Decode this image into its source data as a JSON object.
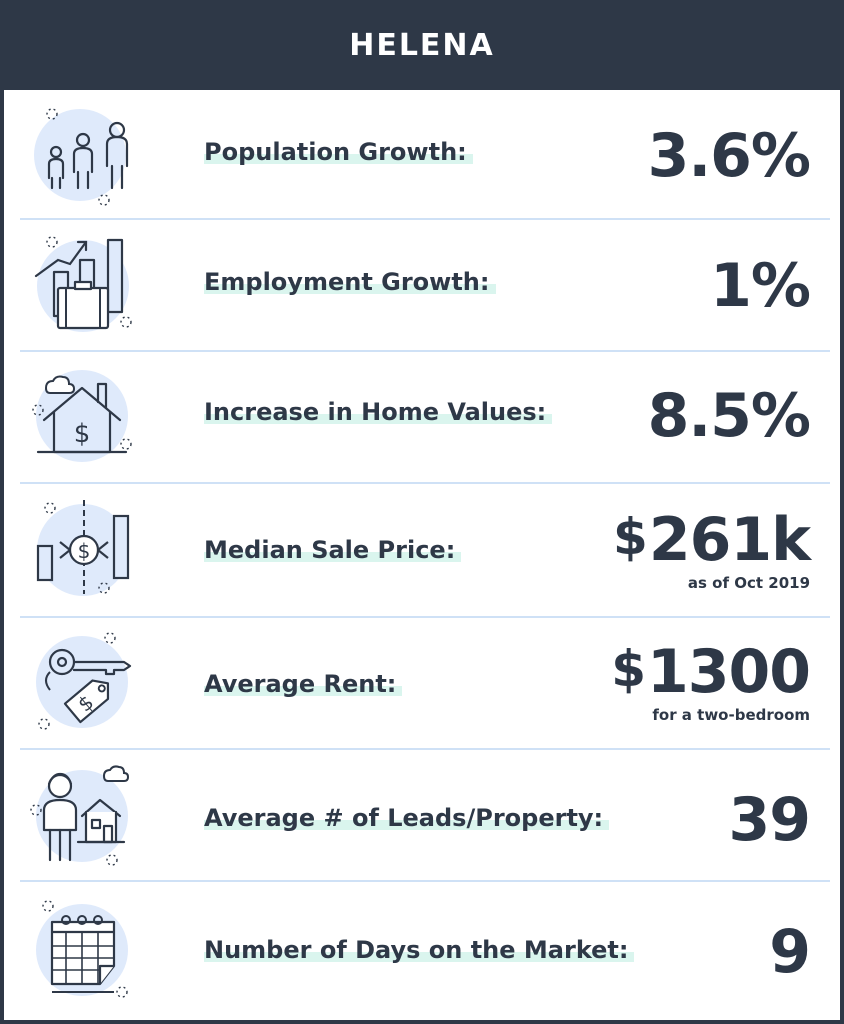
{
  "header": {
    "title": "HELENA"
  },
  "colors": {
    "dark": "#2e3847",
    "accent_light_blue": "#dfeafb",
    "divider": "#cfe1f6",
    "highlight": "#daf5ee"
  },
  "rows": [
    {
      "icon": "family-icon",
      "label": "Population Growth:",
      "value": "3.6%"
    },
    {
      "icon": "briefcase-chart-icon",
      "label": "Employment Growth:",
      "value": "1%"
    },
    {
      "icon": "house-dollar-icon",
      "label": "Increase in Home Values:",
      "value": "8.5%"
    },
    {
      "icon": "price-chart-icon",
      "label": "Median Sale Price:",
      "value_currency": "$",
      "value_number": "261k",
      "sub": "as  of Oct 2019"
    },
    {
      "icon": "key-tag-icon",
      "label": "Average Rent:",
      "value_currency": "$",
      "value_number": "1300",
      "sub": "for a two-bedroom"
    },
    {
      "icon": "person-house-icon",
      "label": "Average # of Leads/Property:",
      "value": "39"
    },
    {
      "icon": "calendar-icon",
      "label": "Number of Days on the Market:",
      "value": "9"
    }
  ]
}
